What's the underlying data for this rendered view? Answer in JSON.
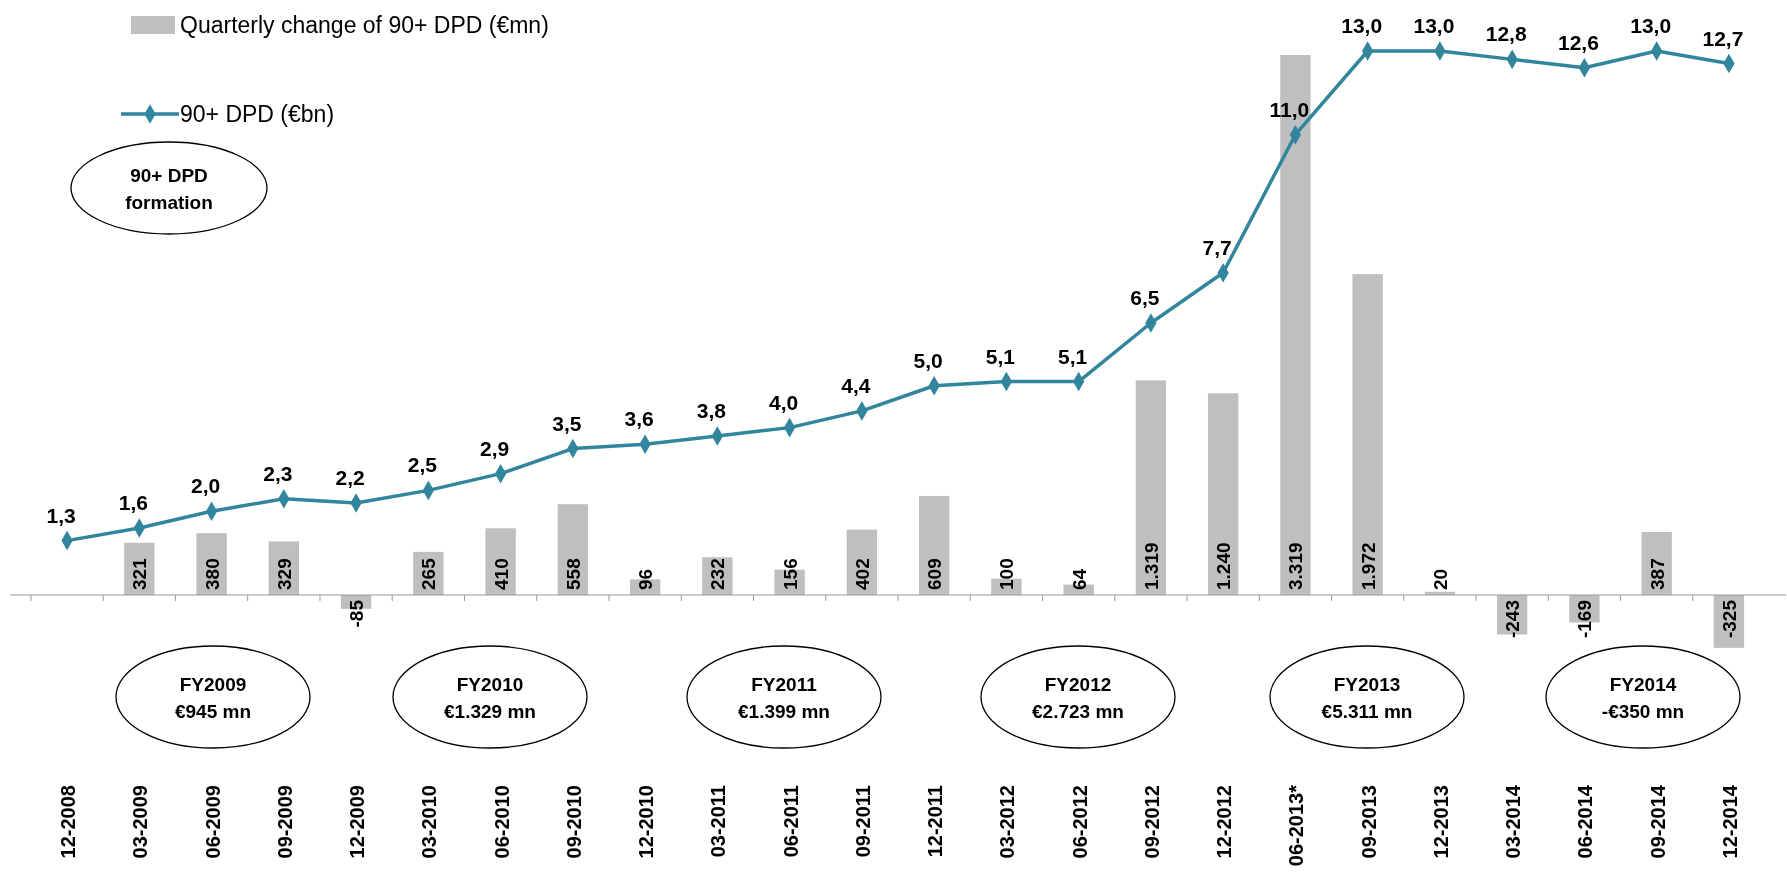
{
  "chart_data": {
    "type": "bar",
    "categories": [
      "12-2008",
      "03-2009",
      "06-2009",
      "09-2009",
      "12-2009",
      "03-2010",
      "06-2010",
      "09-2010",
      "12-2010",
      "03-2011",
      "06-2011",
      "09-2011",
      "12-2011",
      "03-2012",
      "06-2012",
      "09-2012",
      "12-2012",
      "06-2013*",
      "09-2013",
      "12-2013",
      "03-2014",
      "06-2014",
      "09-2014",
      "12-2014"
    ],
    "series": [
      {
        "name": "Quarterly change of 90+ DPD (€mn)",
        "color": "#bfbfbf",
        "values": [
          null,
          321,
          380,
          329,
          -85,
          265,
          410,
          558,
          96,
          232,
          156,
          402,
          609,
          100,
          64,
          1319,
          1240,
          3319,
          1972,
          20,
          -243,
          -169,
          387,
          -325
        ],
        "value_labels": [
          null,
          "321",
          "380",
          "329",
          "-85",
          "265",
          "410",
          "558",
          "96",
          "232",
          "156",
          "402",
          "609",
          "100",
          "64",
          "1.319",
          "1.240",
          "3.319",
          "1.972",
          "20",
          "-243",
          "-169",
          "387",
          "-325"
        ]
      },
      {
        "name": "90+ DPD (€bn)",
        "type": "line",
        "axis": "y2",
        "color": "#31859c",
        "values": [
          1.3,
          1.6,
          2.0,
          2.3,
          2.2,
          2.5,
          2.9,
          3.5,
          3.6,
          3.8,
          4.0,
          4.4,
          5.0,
          5.1,
          5.1,
          6.5,
          7.7,
          11.0,
          13.0,
          13.0,
          12.8,
          12.6,
          13.0,
          12.7
        ],
        "value_labels": [
          "1,3",
          "1,6",
          "2,0",
          "2,3",
          "2,2",
          "2,5",
          "2,9",
          "3,5",
          "3,6",
          "3,8",
          "4,0",
          "4,4",
          "5,0",
          "5,1",
          "5,1",
          "6,5",
          "7,7",
          "11,0",
          "13,0",
          "13,0",
          "12,8",
          "12,6",
          "13,0",
          "12,7"
        ]
      }
    ],
    "tick_labels": "x",
    "legend": "top left",
    "marker": "diamond",
    "annotations": [
      "90+ DPD\nformation",
      "FY2009\n€945 mn",
      "FY2010\n€1.329 mn",
      "FY2011\n€1.399 mn",
      "FY2012\n€2.723 mn",
      "FY2013\n€5.311 mn",
      "FY2014\n-€350 mn"
    ]
  }
}
